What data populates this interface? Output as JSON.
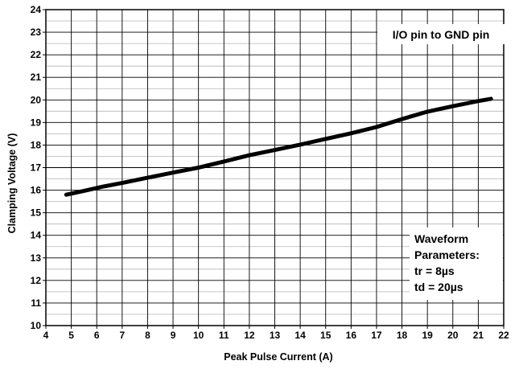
{
  "chart_data": {
    "type": "line",
    "xlabel": "Peak Pulse Current (A)",
    "ylabel": "Clamping Voltage (V)",
    "xlim": [
      4,
      22
    ],
    "ylim": [
      10,
      24
    ],
    "x_ticks": [
      4,
      5,
      6,
      7,
      8,
      9,
      10,
      11,
      12,
      13,
      14,
      15,
      16,
      17,
      18,
      19,
      20,
      21,
      22
    ],
    "y_ticks": [
      10,
      11,
      12,
      13,
      14,
      15,
      16,
      17,
      18,
      19,
      20,
      21,
      22,
      23,
      24
    ],
    "grid": true,
    "series": [
      {
        "color": "#000000",
        "x": [
          4.8,
          5.5,
          6.2,
          7,
          8,
          9,
          10,
          11,
          12,
          13,
          14,
          15,
          16,
          17,
          18,
          19,
          20,
          21,
          21.5
        ],
        "y": [
          15.8,
          15.97,
          16.15,
          16.32,
          16.55,
          16.78,
          17.0,
          17.27,
          17.55,
          17.78,
          18.02,
          18.27,
          18.52,
          18.8,
          19.15,
          19.48,
          19.72,
          19.95,
          20.05
        ]
      }
    ],
    "annotations": {
      "top": "I/O pin to GND pin",
      "bottom": [
        "Waveform",
        "Parameters:",
        "tr = 8µs",
        "td = 20µs"
      ]
    }
  }
}
